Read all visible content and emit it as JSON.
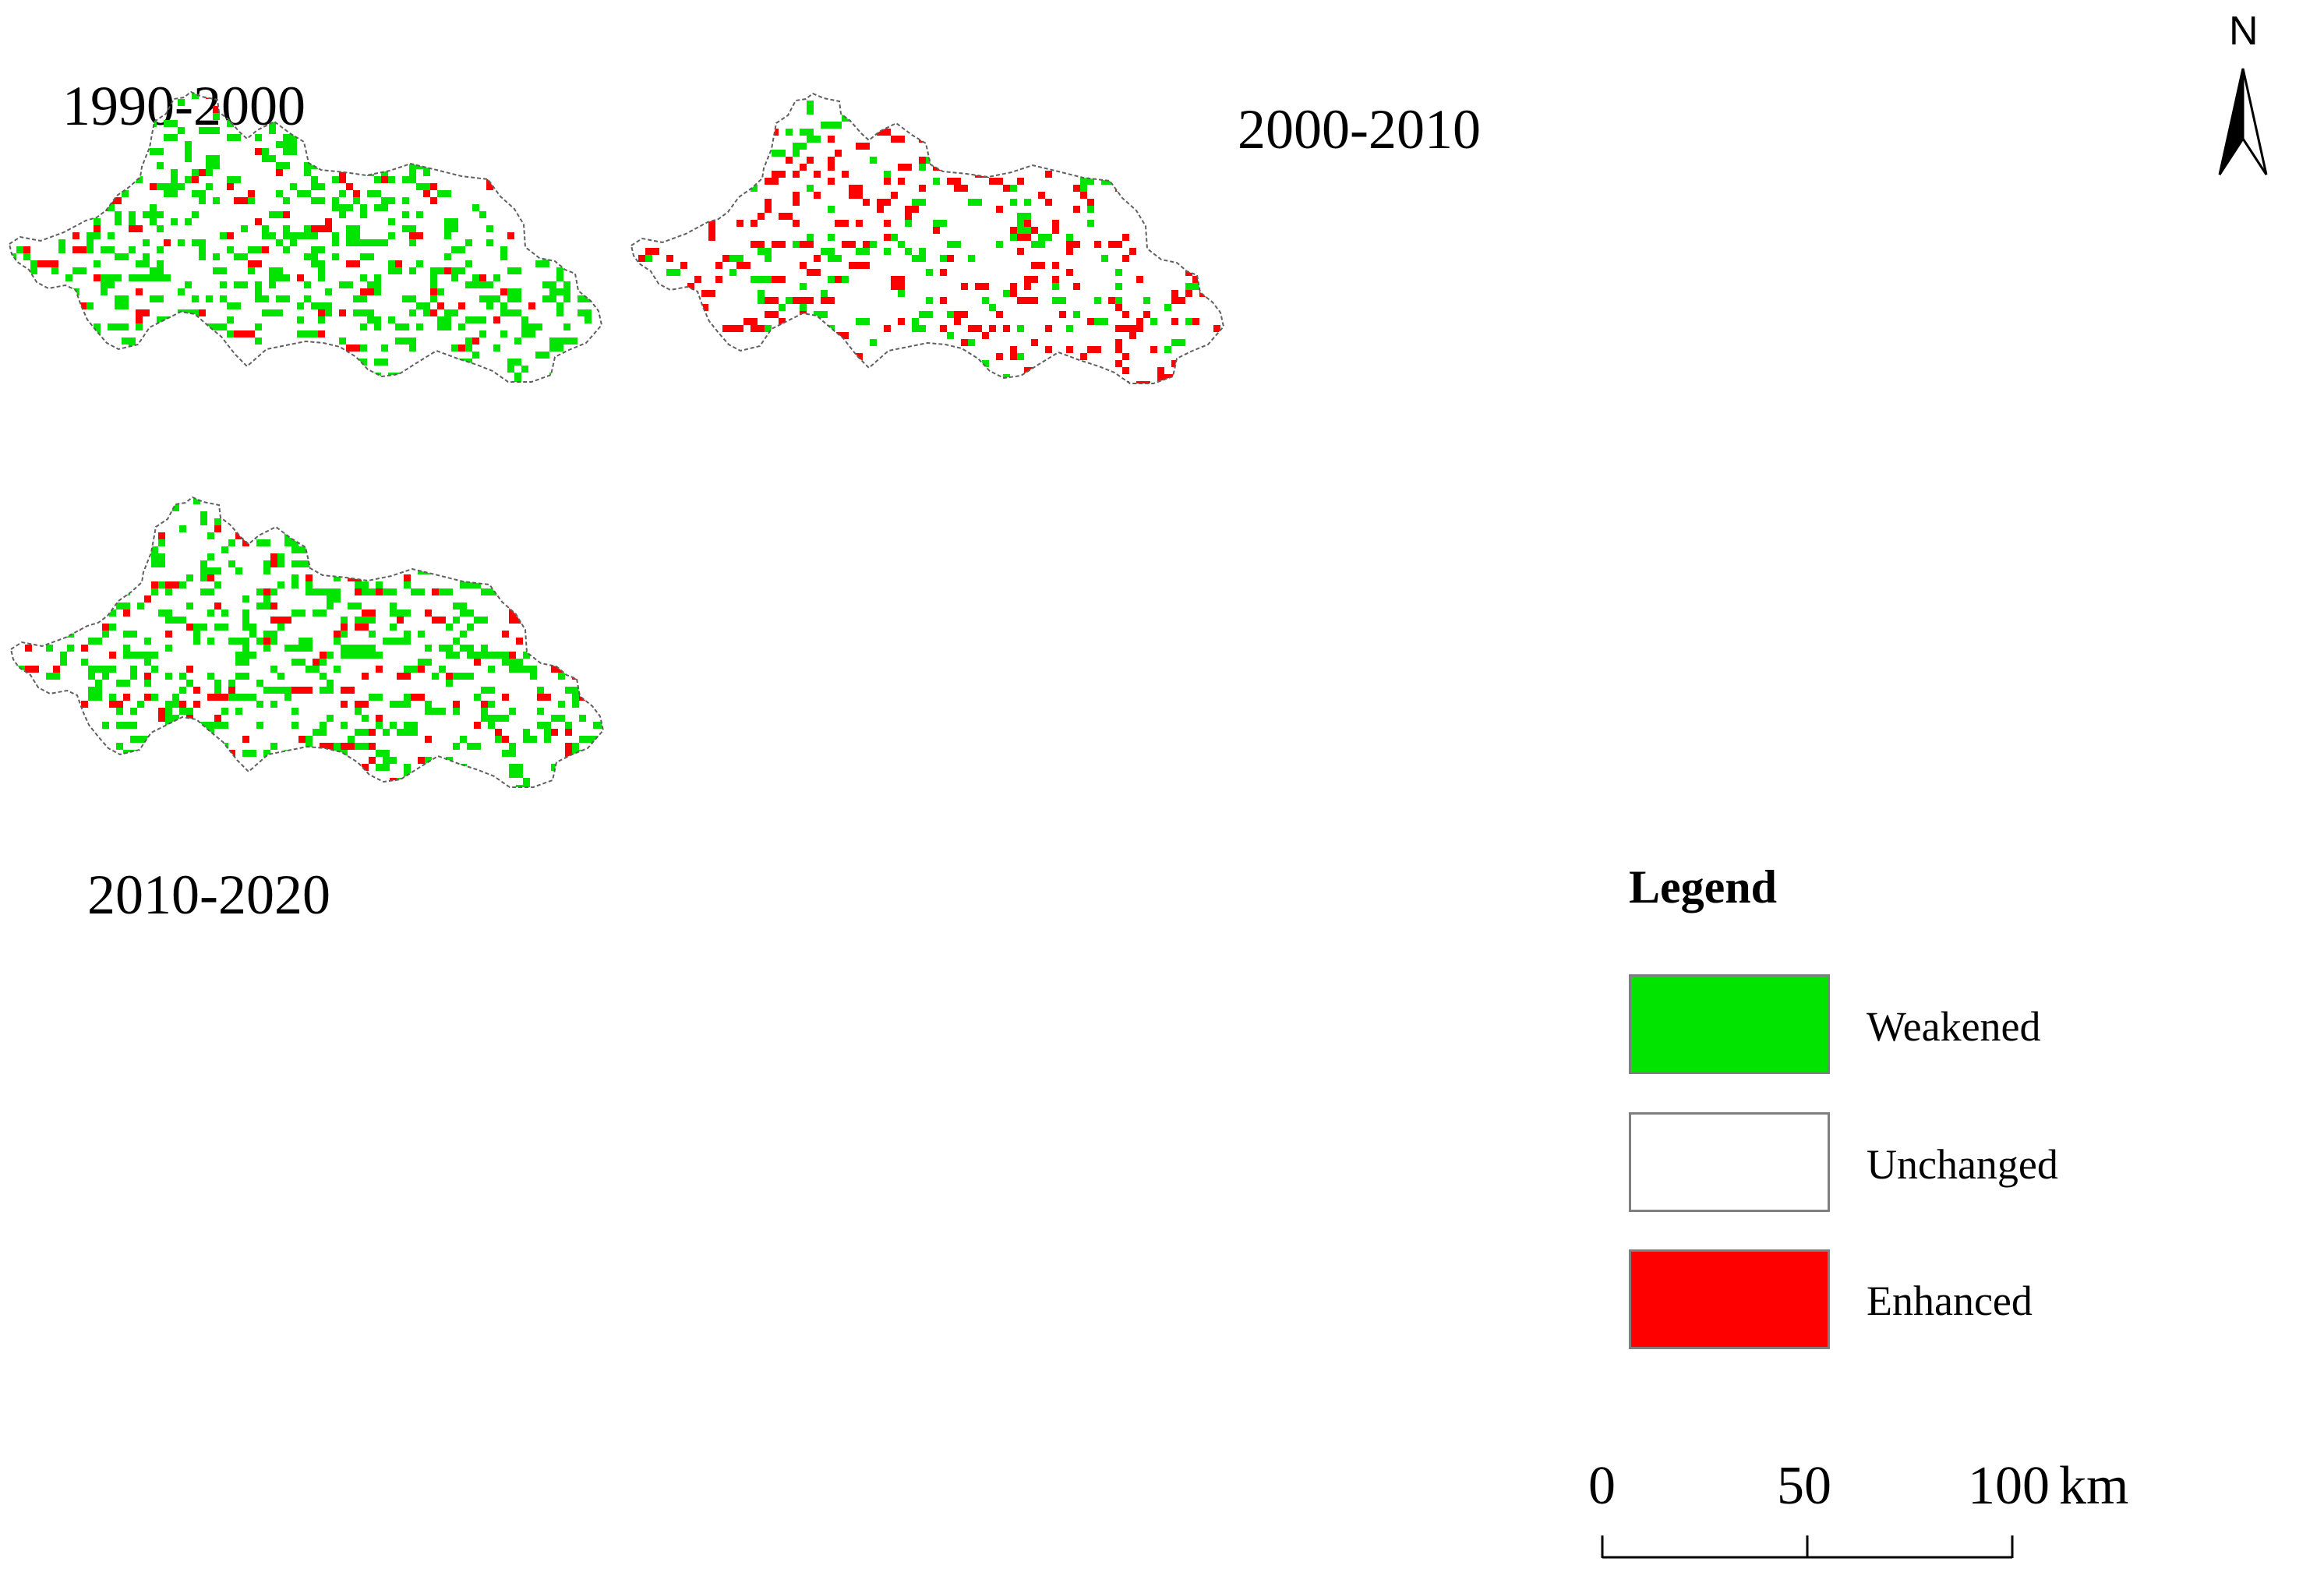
{
  "maps": [
    {
      "title": "1990-2000",
      "seed": 11,
      "weakened_density": 0.2,
      "enhanced_density": 0.035
    },
    {
      "title": "2000-2010",
      "seed": 27,
      "weakened_density": 0.06,
      "enhanced_density": 0.1
    },
    {
      "title": "2010-2020",
      "seed": 43,
      "weakened_density": 0.19,
      "enhanced_density": 0.045
    }
  ],
  "north_arrow": {
    "label": "N"
  },
  "legend": {
    "title": "Legend",
    "items": [
      {
        "label": "Weakened",
        "color": "#00e400"
      },
      {
        "label": "Unchanged",
        "color": "#ffffff"
      },
      {
        "label": "Enhanced",
        "color": "#ff0000"
      }
    ]
  },
  "scale_bar": {
    "ticks": [
      "0",
      "50",
      "100"
    ],
    "unit": "km"
  },
  "colors": {
    "weakened": "#00e400",
    "enhanced": "#ff0000",
    "boundary": "#606060"
  }
}
